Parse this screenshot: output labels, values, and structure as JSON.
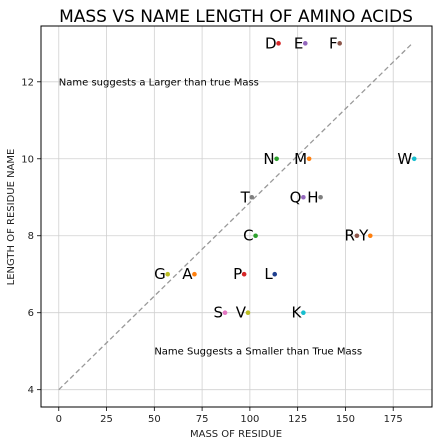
{
  "chart_data": {
    "type": "scatter",
    "title": "MASS VS NAME LENGTH OF AMINO ACIDS",
    "xlabel": "MASS OF RESIDUE",
    "ylabel": "LENGTH OF RESIDUE NAME",
    "xlim": [
      -9.3,
      195.3
    ],
    "ylim": [
      3.55,
      13.45
    ],
    "x_ticks": [
      0,
      25,
      50,
      75,
      100,
      125,
      150,
      175
    ],
    "y_ticks": [
      4,
      6,
      8,
      10,
      12
    ],
    "grid": true,
    "reference_line": {
      "x": [
        0,
        185
      ],
      "y": [
        4,
        13
      ],
      "color": "#999999",
      "style": "dashed"
    },
    "points": [
      {
        "label": "D",
        "x": 115,
        "y": 13,
        "color": "#d62728"
      },
      {
        "label": "E",
        "x": 129,
        "y": 13,
        "color": "#9467bd"
      },
      {
        "label": "F",
        "x": 147,
        "y": 13,
        "color": "#8c564b"
      },
      {
        "label": "N",
        "x": 114,
        "y": 10,
        "color": "#2ca02c"
      },
      {
        "label": "M",
        "x": 131,
        "y": 10,
        "color": "#ff7f0e"
      },
      {
        "label": "W",
        "x": 186,
        "y": 10,
        "color": "#17becf"
      },
      {
        "label": "T",
        "x": 101,
        "y": 9,
        "color": "#7f7f7f"
      },
      {
        "label": "Q",
        "x": 128,
        "y": 9,
        "color": "#9467bd"
      },
      {
        "label": "H",
        "x": 137,
        "y": 9,
        "color": "#7f7f7f"
      },
      {
        "label": "C",
        "x": 103,
        "y": 8,
        "color": "#2ca02c"
      },
      {
        "label": "R",
        "x": 156,
        "y": 8,
        "color": "#8c564b"
      },
      {
        "label": "Y",
        "x": 163,
        "y": 8,
        "color": "#ff7f0e"
      },
      {
        "label": "G",
        "x": 57,
        "y": 7,
        "color": "#bcbd22"
      },
      {
        "label": "A",
        "x": 71,
        "y": 7,
        "color": "#ff7f0e"
      },
      {
        "label": "P",
        "x": 97,
        "y": 7,
        "color": "#d62728"
      },
      {
        "label": "L",
        "x": 113,
        "y": 7,
        "color": "#1f3f8f"
      },
      {
        "label": "S",
        "x": 87,
        "y": 6,
        "color": "#e377c2"
      },
      {
        "label": "V",
        "x": 99,
        "y": 6,
        "color": "#bcbd22"
      },
      {
        "label": "K",
        "x": 128,
        "y": 6,
        "color": "#17becf"
      }
    ],
    "annotations": [
      {
        "text": "Name suggests a Larger than true Mass",
        "x": 0,
        "y": 12
      },
      {
        "text": "Name Suggests a Smaller than True Mass",
        "x": 50,
        "y": 5
      }
    ]
  }
}
